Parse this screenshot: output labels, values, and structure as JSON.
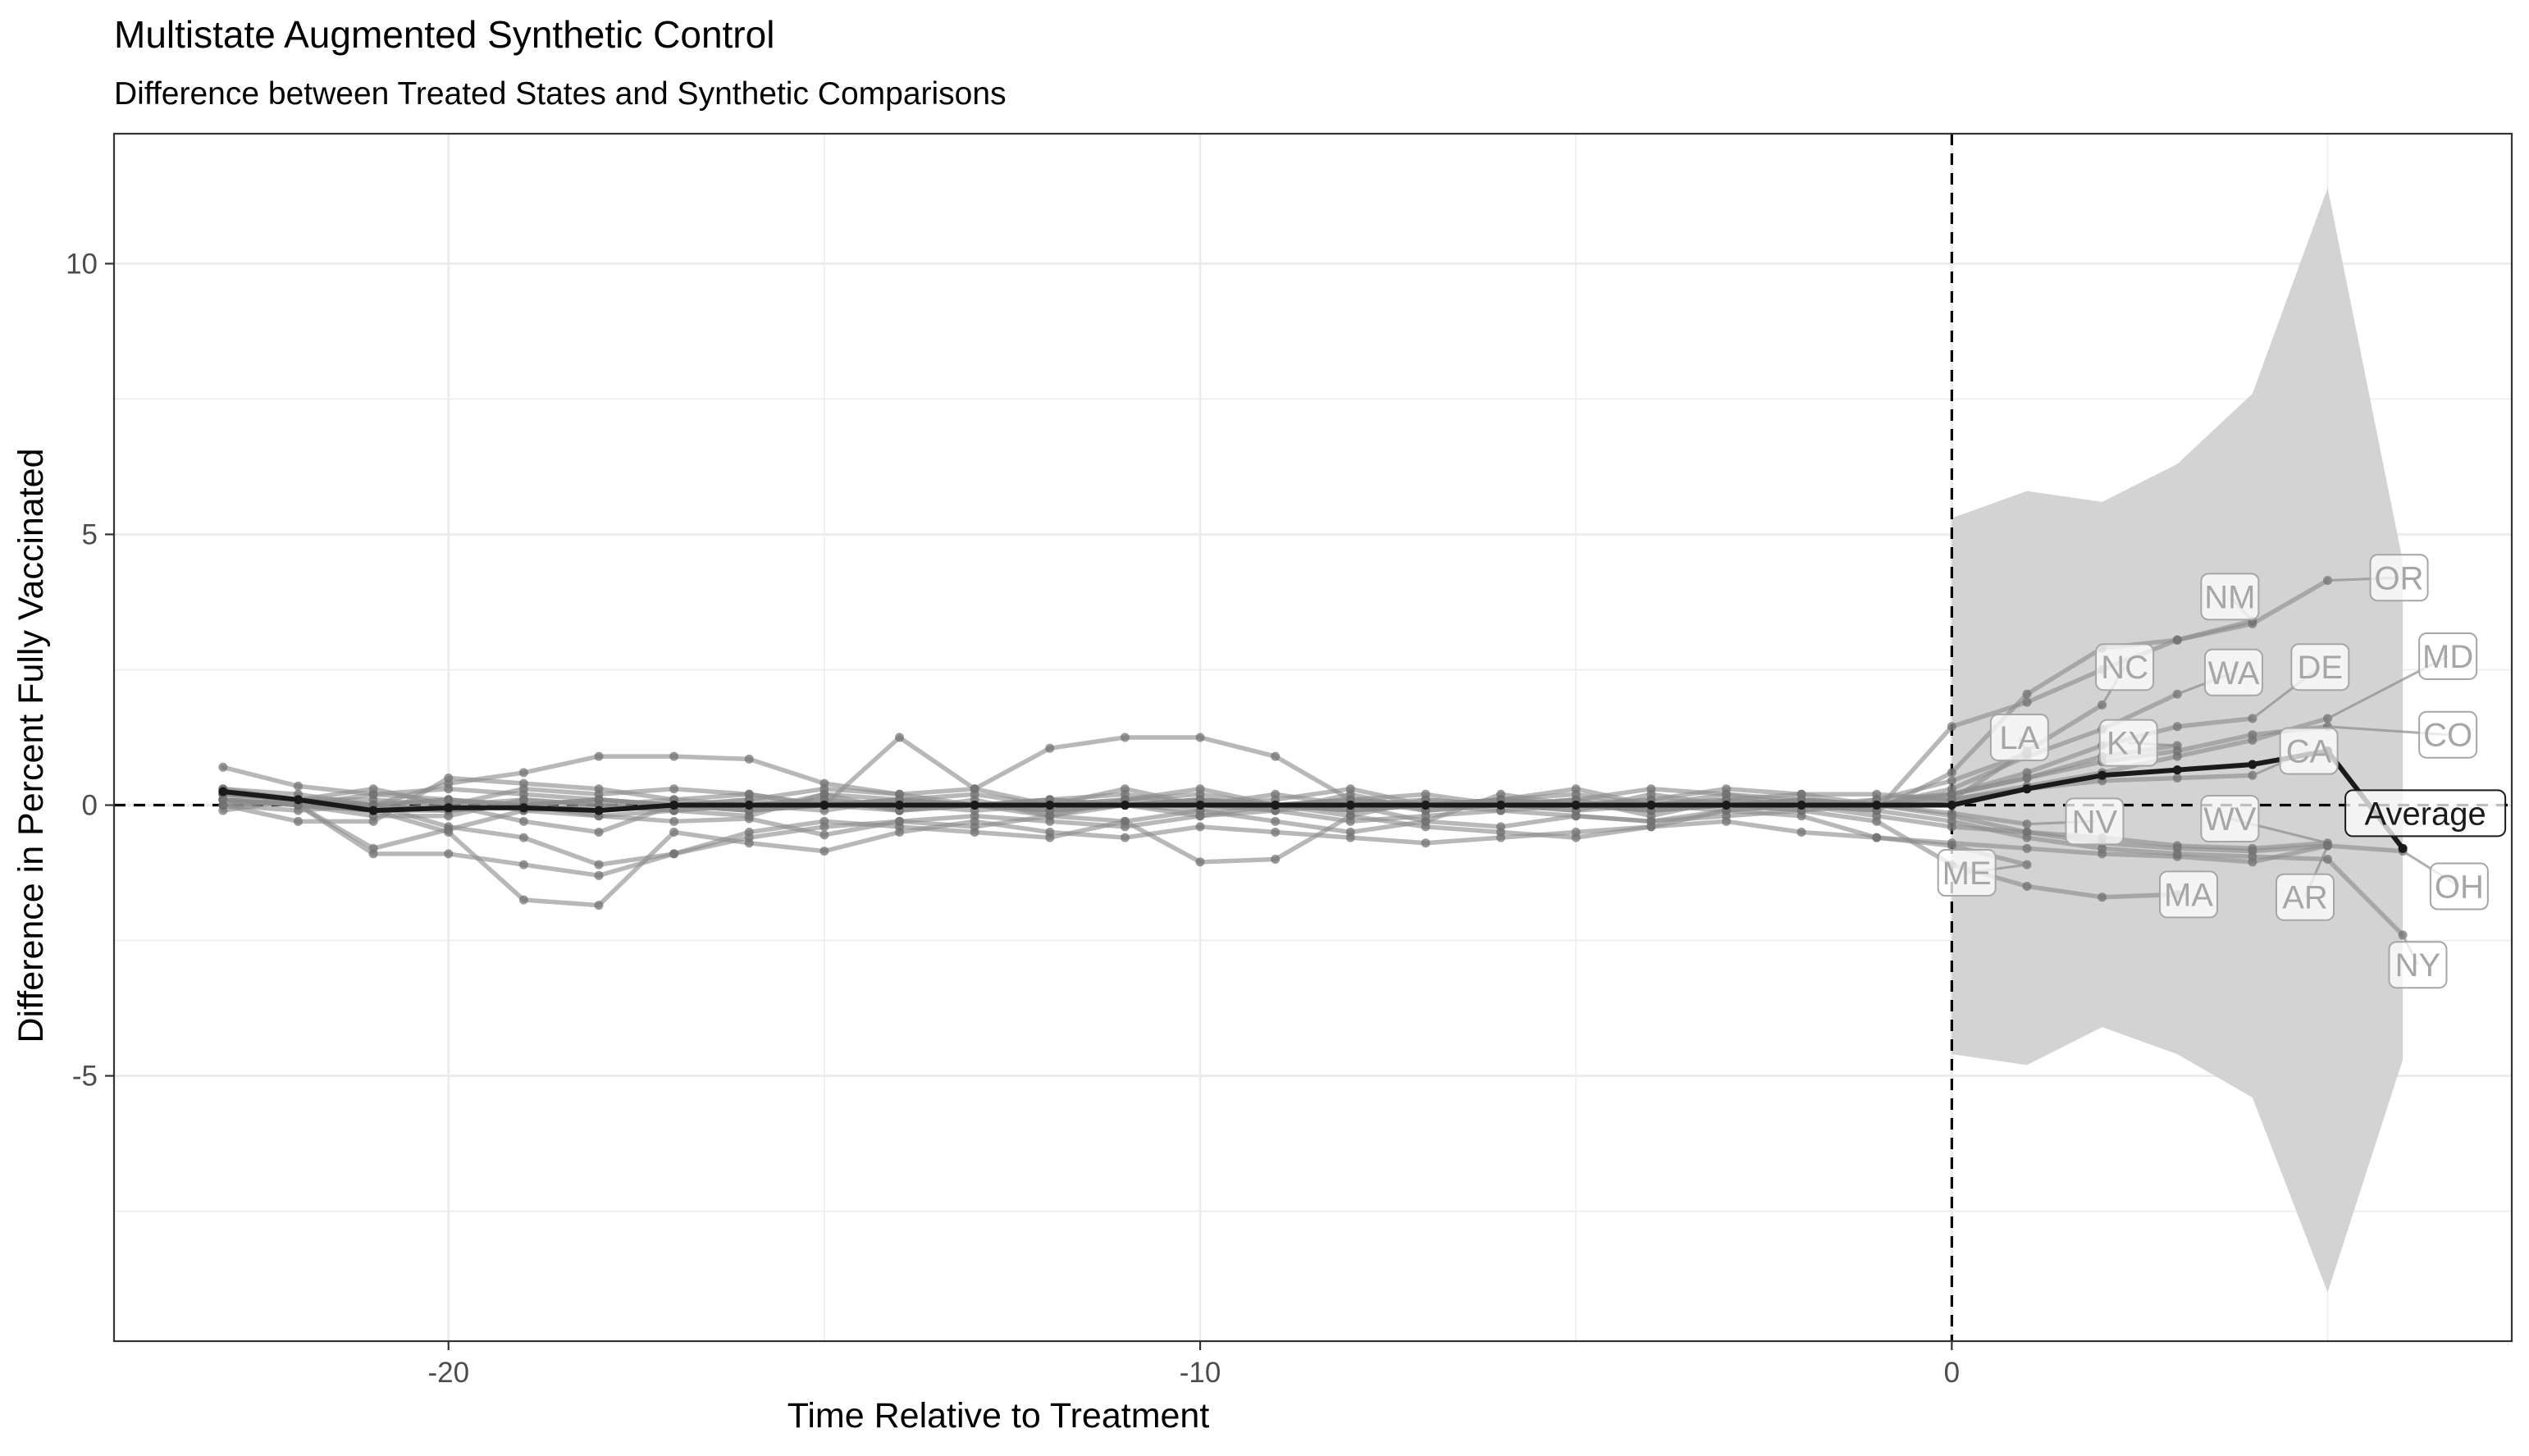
{
  "chart_data": {
    "type": "line",
    "title": "Multistate Augmented Synthetic Control",
    "subtitle": "Difference between Treated States and Synthetic Comparisons",
    "xlabel": "Time Relative to Treatment",
    "ylabel": "Difference in Percent Fully Vaccinated",
    "xlim": [
      -24.45,
      7.45
    ],
    "ylim": [
      -9.9,
      12.4
    ],
    "x_ticks": [
      -20,
      -10,
      0
    ],
    "x_tick_labels": [
      "-20",
      "-10",
      "0"
    ],
    "x_minor_ticks": [
      -25,
      -15,
      -5,
      5
    ],
    "y_ticks": [
      -5,
      0,
      5,
      10
    ],
    "y_tick_labels": [
      "-5",
      "0",
      "5",
      "10"
    ],
    "y_minor_ticks": [
      -7.5,
      -2.5,
      2.5,
      7.5
    ],
    "grid": true,
    "treatment_time": 0,
    "colors": {
      "state_line": "#8c8c8c",
      "average_line": "#1a1a1a",
      "ribbon": "#d3d3d3",
      "grid": "#ebebeb",
      "label_text_states": "#a6a6a6",
      "label_text_average": "#1a1a1a"
    },
    "confidence_band": {
      "x": [
        0,
        1,
        2,
        3,
        4,
        5,
        6
      ],
      "lower": [
        -4.6,
        -4.8,
        -4.1,
        -4.6,
        -5.4,
        -9.0,
        -4.7
      ],
      "upper": [
        5.3,
        5.8,
        5.6,
        6.3,
        7.6,
        11.4,
        4.5
      ]
    },
    "average": {
      "name": "Average",
      "x": [
        -23,
        -22,
        -21,
        -20,
        -19,
        -18,
        -17,
        -16,
        -15,
        -14,
        -13,
        -12,
        -11,
        -10,
        -9,
        -8,
        -7,
        -6,
        -5,
        -4,
        -3,
        -2,
        -1,
        0,
        1,
        2,
        3,
        4,
        5,
        6
      ],
      "values": [
        0.25,
        0.1,
        -0.1,
        -0.05,
        -0.05,
        -0.1,
        0.0,
        0.0,
        0.0,
        0.0,
        0.0,
        0.0,
        0.0,
        0.0,
        0.0,
        0.0,
        0.0,
        0.0,
        0.0,
        0.0,
        0.0,
        0.0,
        0.0,
        0.0,
        0.3,
        0.55,
        0.65,
        0.75,
        1.0,
        -0.8
      ]
    },
    "series": [
      {
        "name": "OR",
        "x": [
          -23,
          -22,
          -21,
          -20,
          -19,
          -18,
          -17,
          -16,
          -15,
          -14,
          -13,
          -12,
          -11,
          -10,
          -9,
          -8,
          -7,
          -6,
          -5,
          -4,
          -3,
          -2,
          -1,
          0,
          1,
          2,
          3,
          4,
          5
        ],
        "values": [
          0.7,
          0.35,
          0.2,
          0.1,
          0.0,
          -0.2,
          -0.1,
          -0.2,
          0.2,
          -0.1,
          0.1,
          -0.2,
          0.0,
          0.1,
          -0.1,
          0.2,
          -0.1,
          0.0,
          0.1,
          -0.2,
          0.1,
          0.0,
          -0.1,
          0.6,
          2.05,
          2.9,
          3.05,
          3.35,
          4.15
        ],
        "label_x": 5.95,
        "label_y": 4.2
      },
      {
        "name": "NM",
        "x": [
          -23,
          -22,
          -21,
          -20,
          -19,
          -18,
          -17,
          -16,
          -15,
          -14,
          -13,
          -12,
          -11,
          -10,
          -9,
          -8,
          -7,
          -6,
          -5,
          -4,
          -3,
          -2,
          -1,
          0,
          1,
          2,
          3,
          4
        ],
        "values": [
          0.3,
          0.2,
          0.0,
          0.4,
          0.6,
          0.9,
          0.9,
          0.85,
          0.4,
          0.2,
          0.3,
          1.05,
          1.25,
          1.25,
          0.9,
          0.1,
          0.0,
          0.1,
          0.3,
          0.0,
          0.2,
          0.0,
          -0.1,
          1.45,
          1.9,
          2.5,
          3.05,
          3.4
        ],
        "label_x": 3.7,
        "label_y": 3.85
      },
      {
        "name": "NC",
        "x": [
          -23,
          -22,
          -21,
          -20,
          -19,
          -18,
          -17,
          -16,
          -15,
          -14,
          -13,
          -12,
          -11,
          -10,
          -9,
          -8,
          -7,
          -6,
          -5,
          -4,
          -3,
          -2,
          -1,
          0,
          1,
          2
        ],
        "values": [
          0.0,
          -0.3,
          -0.3,
          0.5,
          0.4,
          0.3,
          0.1,
          0.2,
          0.0,
          1.25,
          0.3,
          0.0,
          0.3,
          0.0,
          0.2,
          0.0,
          -0.3,
          0.2,
          0.0,
          0.1,
          0.3,
          0.2,
          0.2,
          0.1,
          1.0,
          1.85
        ],
        "label_x": 2.3,
        "label_y": 2.55
      },
      {
        "name": "WA",
        "x": [
          -23,
          -22,
          -21,
          -20,
          -19,
          -18,
          -17,
          -16,
          -15,
          -14,
          -13,
          -12,
          -11,
          -10,
          -9,
          -8,
          -7,
          -6,
          -5,
          -4,
          -3,
          -2,
          -1,
          0,
          1,
          2,
          3
        ],
        "values": [
          0.2,
          0.1,
          0.1,
          0.0,
          0.3,
          0.2,
          0.3,
          0.2,
          0.0,
          0.1,
          0.2,
          0.0,
          0.1,
          0.2,
          0.0,
          0.1,
          0.2,
          0.0,
          0.1,
          0.3,
          0.2,
          0.1,
          0.0,
          0.3,
          0.9,
          1.4,
          2.05
        ],
        "label_x": 3.75,
        "label_y": 2.45
      },
      {
        "name": "DE",
        "x": [
          -23,
          -22,
          -21,
          -20,
          -19,
          -18,
          -17,
          -16,
          -15,
          -14,
          -13,
          -12,
          -11,
          -10,
          -9,
          -8,
          -7,
          -6,
          -5,
          -4,
          -3,
          -2,
          -1,
          0,
          1,
          2,
          3,
          4
        ],
        "values": [
          0.1,
          0.0,
          0.2,
          0.3,
          0.2,
          0.1,
          0.0,
          0.1,
          0.3,
          0.2,
          0.0,
          0.1,
          0.2,
          0.0,
          0.1,
          0.3,
          0.0,
          0.1,
          0.2,
          0.0,
          0.1,
          0.2,
          0.0,
          0.2,
          0.6,
          1.1,
          1.45,
          1.6
        ],
        "label_x": 4.9,
        "label_y": 2.55
      },
      {
        "name": "MD",
        "x": [
          -23,
          -22,
          -21,
          -20,
          -19,
          -18,
          -17,
          -16,
          -15,
          -14,
          -13,
          -12,
          -11,
          -10,
          -9,
          -8,
          -7,
          -6,
          -5,
          -4,
          -3,
          -2,
          -1,
          0,
          1,
          2,
          3,
          4,
          5
        ],
        "values": [
          0.0,
          0.1,
          0.0,
          0.1,
          -0.1,
          0.0,
          0.1,
          0.0,
          -0.1,
          0.1,
          0.0,
          -0.1,
          0.0,
          0.1,
          0.0,
          -0.1,
          0.0,
          0.1,
          0.0,
          -0.1,
          0.0,
          0.1,
          0.0,
          0.1,
          0.35,
          0.6,
          0.9,
          1.2,
          1.6
        ],
        "label_x": 6.6,
        "label_y": 2.75
      },
      {
        "name": "LA",
        "x": [
          -23,
          -22,
          -21,
          -20,
          -19,
          -18,
          -17,
          -16,
          -15,
          -14,
          -13,
          -12,
          -11,
          -10,
          -9,
          -8,
          -7,
          -6,
          -5,
          -4,
          -3,
          -2,
          -1,
          0,
          1
        ],
        "values": [
          -0.1,
          0.1,
          0.3,
          0.0,
          -0.3,
          -0.5,
          0.0,
          -0.1,
          0.2,
          0.1,
          0.0,
          -0.2,
          0.1,
          0.3,
          0.0,
          -0.2,
          0.1,
          0.0,
          -0.1,
          0.2,
          0.0,
          -0.1,
          0.1,
          0.45,
          0.95
        ],
        "label_x": 0.9,
        "label_y": 1.25
      },
      {
        "name": "KY",
        "x": [
          -23,
          -22,
          -21,
          -20,
          -19,
          -18,
          -17,
          -16,
          -15,
          -14,
          -13,
          -12,
          -11,
          -10,
          -9,
          -8,
          -7,
          -6,
          -5,
          -4,
          -3,
          -2,
          -1,
          0,
          1,
          2,
          3
        ],
        "values": [
          0.1,
          0.0,
          -0.2,
          -0.2,
          0.1,
          0.0,
          -0.1,
          0.0,
          0.1,
          -0.1,
          0.0,
          0.1,
          0.0,
          -0.2,
          0.0,
          0.1,
          -0.1,
          0.0,
          0.1,
          0.0,
          -0.1,
          0.0,
          0.1,
          0.2,
          0.5,
          0.9,
          1.1
        ],
        "label_x": 2.35,
        "label_y": 1.15
      },
      {
        "name": "CO",
        "x": [
          -23,
          -22,
          -21,
          -20,
          -19,
          -18,
          -17,
          -16,
          -15,
          -14,
          -13,
          -12,
          -11,
          -10,
          -9,
          -8,
          -7,
          -6,
          -5,
          -4,
          -3,
          -2,
          -1,
          0,
          1,
          2,
          3,
          4,
          5
        ],
        "values": [
          0.0,
          -0.1,
          0.0,
          0.1,
          0.0,
          -0.1,
          0.0,
          0.1,
          0.0,
          -0.1,
          0.0,
          0.1,
          0.0,
          -0.1,
          0.0,
          0.1,
          0.0,
          -0.1,
          0.0,
          0.1,
          0.0,
          -0.1,
          0.0,
          0.2,
          0.5,
          0.8,
          1.0,
          1.3,
          1.45
        ],
        "label_x": 6.6,
        "label_y": 1.3
      },
      {
        "name": "CA",
        "x": [
          -23,
          -22,
          -21,
          -20,
          -19,
          -18,
          -17,
          -16,
          -15,
          -14,
          -13,
          -12,
          -11,
          -10,
          -9,
          -8,
          -7,
          -6,
          -5,
          -4,
          -3,
          -2,
          -1,
          0,
          1,
          2,
          3,
          4
        ],
        "values": [
          0.3,
          0.1,
          0.0,
          -0.1,
          0.0,
          0.1,
          0.0,
          -0.1,
          0.0,
          0.1,
          0.0,
          -0.1,
          0.0,
          0.1,
          0.0,
          -0.1,
          0.0,
          0.1,
          0.0,
          -0.1,
          0.0,
          0.1,
          0.0,
          0.1,
          0.3,
          0.45,
          0.5,
          0.55
        ],
        "label_x": 4.75,
        "label_y": 1.0
      },
      {
        "name": "NV",
        "x": [
          -23,
          -22,
          -21,
          -20,
          -19,
          -18,
          -17,
          -16,
          -15,
          -14,
          -13,
          -12,
          -11,
          -10,
          -9,
          -8,
          -7,
          -6,
          -5,
          -4,
          -3,
          -2,
          -1,
          0,
          1
        ],
        "values": [
          0.1,
          0.0,
          -0.1,
          -0.1,
          0.0,
          0.1,
          0.0,
          -0.1,
          0.0,
          0.1,
          0.0,
          -0.1,
          0.0,
          0.1,
          0.0,
          -0.1,
          0.0,
          0.1,
          0.0,
          -0.1,
          0.0,
          0.1,
          0.0,
          -0.15,
          -0.35
        ],
        "label_x": 1.9,
        "label_y": -0.3
      },
      {
        "name": "WV",
        "x": [
          -23,
          -22,
          -21,
          -20,
          -19,
          -18,
          -17,
          -16,
          -15,
          -14,
          -13,
          -12,
          -11,
          -10,
          -9,
          -8,
          -7,
          -6,
          -5,
          -4,
          -3,
          -2,
          -1,
          0,
          1,
          2,
          3,
          4,
          5
        ],
        "values": [
          0.0,
          0.1,
          0.0,
          -0.4,
          -0.6,
          -1.1,
          -0.9,
          -0.5,
          -0.3,
          -0.4,
          -0.5,
          -0.6,
          -0.3,
          -1.05,
          -1.0,
          -0.2,
          -0.4,
          -0.5,
          -0.6,
          -0.4,
          -0.1,
          0.0,
          -0.2,
          -0.4,
          -0.5,
          -0.6,
          -0.75,
          -0.8,
          -0.7
        ],
        "label_x": 3.7,
        "label_y": -0.25
      },
      {
        "name": "ME",
        "x": [
          -23,
          -22,
          -21,
          -20,
          -19,
          -18,
          -17,
          -16,
          -15,
          -14,
          -13,
          -12,
          -11,
          -10,
          -9,
          -8,
          -7,
          -6,
          -5,
          -4,
          -3,
          -2,
          -1,
          0,
          1
        ],
        "values": [
          0.1,
          0.0,
          -0.8,
          -0.45,
          -0.1,
          -0.2,
          -0.3,
          -0.25,
          -0.55,
          -0.3,
          -0.4,
          -0.2,
          -0.3,
          -0.1,
          -0.3,
          -0.5,
          -0.3,
          -0.4,
          -0.2,
          -0.3,
          -0.1,
          -0.2,
          -0.6,
          -0.75,
          -1.1
        ],
        "label_x": 0.2,
        "label_y": -1.25
      },
      {
        "name": "MA",
        "x": [
          -23,
          -22,
          -21,
          -20,
          -19,
          -18,
          -17,
          -16,
          -15,
          -14,
          -13,
          -12,
          -11,
          -10,
          -9,
          -8,
          -7,
          -6,
          -5,
          -4,
          -3,
          -2,
          -1,
          0,
          1,
          2,
          3
        ],
        "values": [
          0.1,
          0.0,
          -0.9,
          -0.9,
          -1.1,
          -1.3,
          -0.9,
          -0.6,
          -0.4,
          -0.3,
          -0.2,
          -0.3,
          -0.4,
          -0.2,
          -0.1,
          -0.3,
          -0.2,
          -0.1,
          -0.2,
          -0.3,
          -0.2,
          -0.1,
          -0.3,
          -1.1,
          -1.5,
          -1.7,
          -1.65
        ],
        "label_x": 3.15,
        "label_y": -1.65
      },
      {
        "name": "AR",
        "x": [
          -23,
          -22,
          -21,
          -20,
          -19,
          -18,
          -17,
          -16,
          -15,
          -14,
          -13,
          -12,
          -11,
          -10,
          -9,
          -8,
          -7,
          -6,
          -5,
          -4,
          -3,
          -2,
          -1,
          0,
          1,
          2,
          3,
          4,
          5
        ],
        "values": [
          0.2,
          0.0,
          -0.1,
          -0.5,
          -1.75,
          -1.85,
          -0.5,
          -0.7,
          -0.85,
          -0.5,
          -0.3,
          -0.5,
          -0.6,
          -0.4,
          -0.5,
          -0.6,
          -0.7,
          -0.6,
          -0.5,
          -0.4,
          -0.3,
          -0.5,
          -0.6,
          -0.7,
          -0.8,
          -0.9,
          -0.95,
          -1.05,
          -0.75
        ],
        "label_x": 4.7,
        "label_y": -1.7
      },
      {
        "name": "OH",
        "x": [
          -23,
          -22,
          -21,
          -20,
          -19,
          -18,
          -17,
          -16,
          -15,
          -14,
          -13,
          -12,
          -11,
          -10,
          -9,
          -8,
          -7,
          -6,
          -5,
          -4,
          -3,
          -2,
          -1,
          0,
          1,
          2,
          3,
          4,
          5,
          6
        ],
        "values": [
          0.2,
          0.1,
          0.0,
          -0.1,
          0.0,
          0.1,
          0.0,
          -0.1,
          0.0,
          0.1,
          0.0,
          -0.1,
          0.0,
          0.1,
          0.0,
          -0.1,
          0.0,
          0.1,
          0.0,
          -0.1,
          0.0,
          0.1,
          0.0,
          -0.2,
          -0.5,
          -0.7,
          -0.8,
          -0.85,
          -0.75,
          -0.85
        ],
        "label_x": 6.75,
        "label_y": -1.5
      },
      {
        "name": "NY",
        "x": [
          -23,
          -22,
          -21,
          -20,
          -19,
          -18,
          -17,
          -16,
          -15,
          -14,
          -13,
          -12,
          -11,
          -10,
          -9,
          -8,
          -7,
          -6,
          -5,
          -4,
          -3,
          -2,
          -1,
          0,
          1,
          2,
          3,
          4,
          5,
          6
        ],
        "values": [
          0.1,
          0.0,
          -0.1,
          0.0,
          0.1,
          0.0,
          -0.1,
          0.0,
          0.1,
          0.0,
          -0.1,
          0.0,
          0.1,
          0.0,
          -0.1,
          0.0,
          0.1,
          0.0,
          -0.1,
          0.0,
          0.1,
          0.0,
          -0.1,
          -0.3,
          -0.6,
          -0.8,
          -0.9,
          -0.95,
          -1.0,
          -2.4
        ],
        "label_x": 6.2,
        "label_y": -2.95
      }
    ]
  }
}
